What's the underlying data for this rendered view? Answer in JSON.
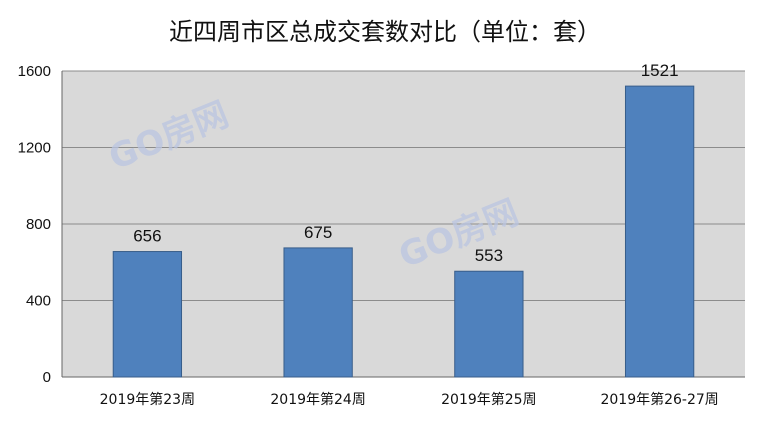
{
  "chart_data": {
    "type": "bar",
    "title": "近四周市区总成交套数对比（单位：套）",
    "xlabel": "",
    "ylabel": "",
    "categories": [
      "2019年第23周",
      "2019年第24周",
      "2019年第25周",
      "2019年第26-27周"
    ],
    "values": [
      656,
      675,
      553,
      1521
    ],
    "data_labels": [
      "656",
      "675",
      "553",
      "1521"
    ],
    "y_ticks": [
      "0",
      "400",
      "800",
      "1200",
      "1600"
    ],
    "ylim": [
      0,
      1600
    ],
    "grid": true,
    "legend": "none"
  },
  "watermarks": [
    "GO房网",
    "GO房网"
  ],
  "colors": {
    "bar": "#4f81bd",
    "bar_stroke": "#385d8a",
    "plot_background": "#d9d9d9",
    "gridline": "#8c8c8c",
    "text": "#111111"
  }
}
